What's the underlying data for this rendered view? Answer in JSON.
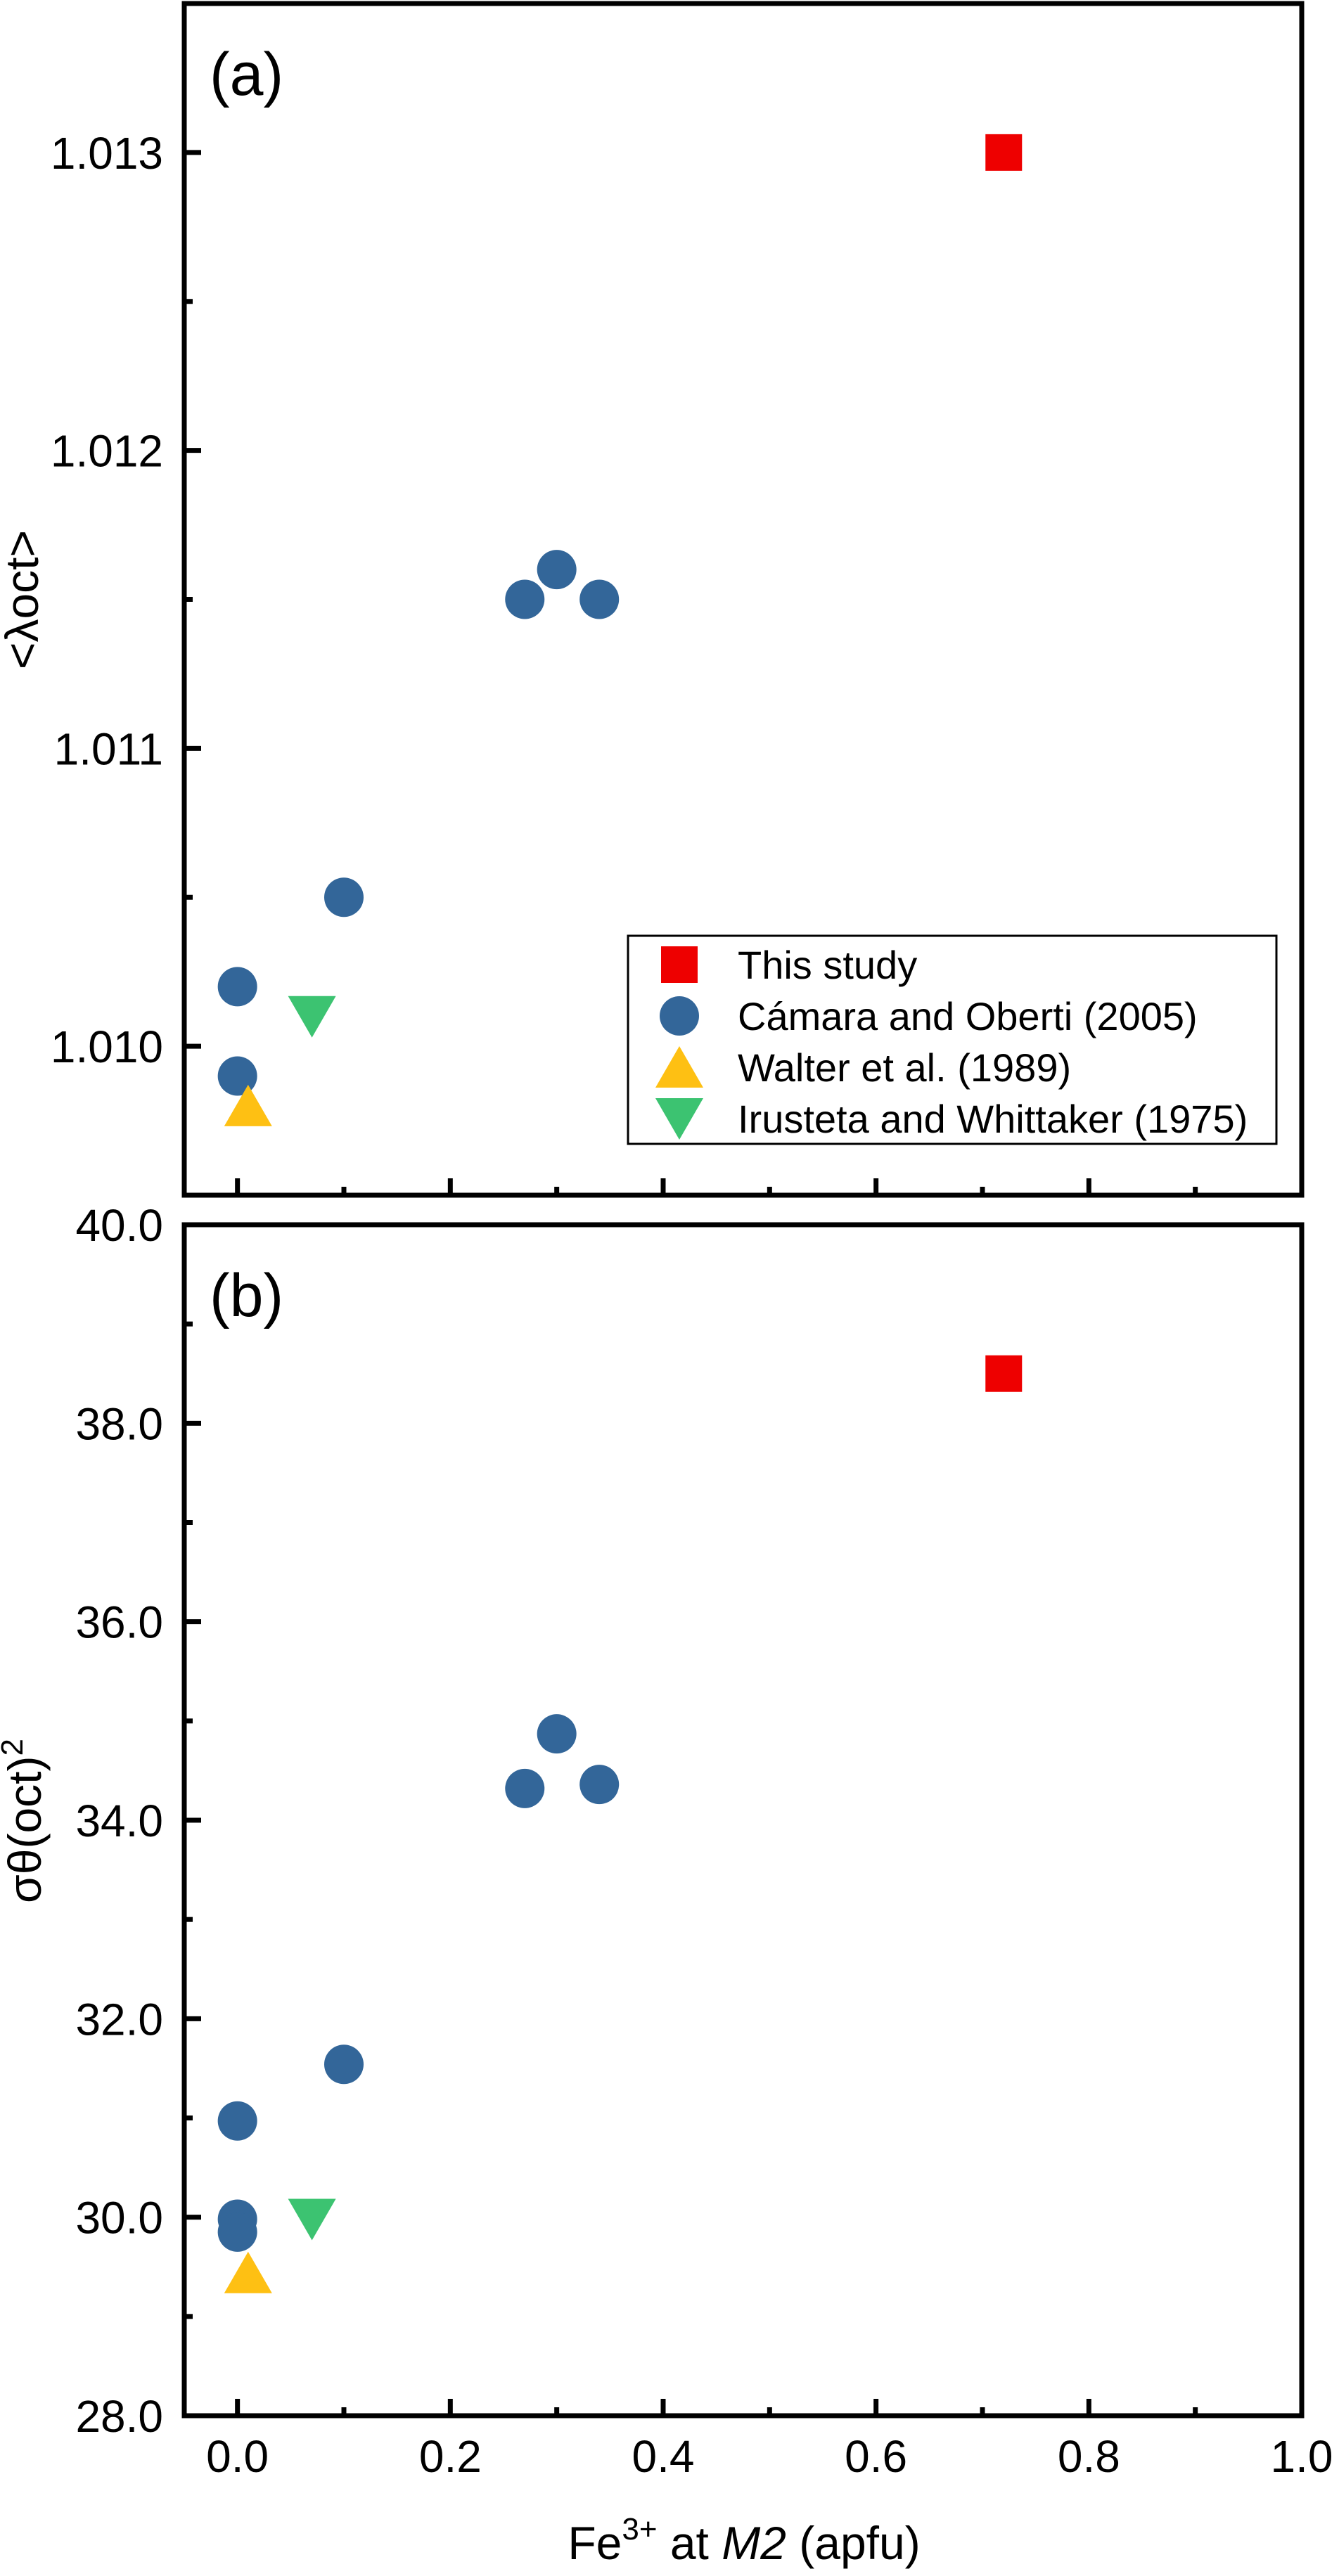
{
  "chart_data": [
    {
      "type": "scatter",
      "panel_label": "(a)",
      "ylabel": "<λoct>",
      "xlabel": "",
      "xlim": [
        -0.05,
        1.0
      ],
      "ylim": [
        1.0095,
        1.0135
      ],
      "yticks": [
        1.01,
        1.011,
        1.012,
        1.013
      ],
      "ytick_labels": [
        "1.010",
        "1.011",
        "1.012",
        "1.013"
      ],
      "yminor": [
        1.0095,
        1.0105,
        1.0115,
        1.0125,
        1.0135
      ],
      "grid": false,
      "legend_position": "bottom-right",
      "series": [
        {
          "name": "This study",
          "marker": "square",
          "color": "#ee0000",
          "points": [
            [
              0.72,
              1.013
            ]
          ]
        },
        {
          "name": "Cámara and Oberti (2005)",
          "marker": "circle",
          "color": "#336699",
          "points": [
            [
              0.0,
              1.0102
            ],
            [
              0.0,
              1.0099
            ],
            [
              0.1,
              1.0105
            ],
            [
              0.27,
              1.0115
            ],
            [
              0.3,
              1.0116
            ],
            [
              0.34,
              1.0115
            ]
          ]
        },
        {
          "name": "Walter et al. (1989)",
          "marker": "triangle-up",
          "color": "#fec013",
          "points": [
            [
              0.01,
              1.0098
            ]
          ]
        },
        {
          "name": "Irusteta and Whittaker (1975)",
          "marker": "triangle-down",
          "color": "#3cc371",
          "points": [
            [
              0.07,
              1.0101
            ]
          ]
        }
      ]
    },
    {
      "type": "scatter",
      "panel_label": "(b)",
      "ylabel": "σθ(oct)",
      "ylabel_sup": "2",
      "xlabel_parts": {
        "base": "Fe",
        "sup": "3+",
        "mid": " at ",
        "italic": "M2",
        "tail": " (apfu)"
      },
      "xlim": [
        -0.05,
        1.0
      ],
      "ylim": [
        28.0,
        40.0
      ],
      "xticks": [
        0.0,
        0.2,
        0.4,
        0.6,
        0.8,
        1.0
      ],
      "xtick_labels": [
        "0.0",
        "0.2",
        "0.4",
        "0.6",
        "0.8",
        "1.0"
      ],
      "xminor": [
        0.1,
        0.3,
        0.5,
        0.7,
        0.9
      ],
      "yticks": [
        28.0,
        30.0,
        32.0,
        34.0,
        36.0,
        38.0,
        40.0
      ],
      "ytick_labels": [
        "28.0",
        "30.0",
        "32.0",
        "34.0",
        "36.0",
        "38.0",
        "40.0"
      ],
      "yminor": [
        29.0,
        31.0,
        33.0,
        35.0,
        37.0,
        39.0
      ],
      "grid": false,
      "series": [
        {
          "name": "This study",
          "marker": "square",
          "color": "#ee0000",
          "points": [
            [
              0.72,
              38.5
            ]
          ]
        },
        {
          "name": "Cámara and Oberti (2005)",
          "marker": "circle",
          "color": "#336699",
          "points": [
            [
              0.0,
              30.97
            ],
            [
              0.0,
              29.98
            ],
            [
              0.0,
              29.85
            ],
            [
              0.1,
              31.54
            ],
            [
              0.27,
              34.32
            ],
            [
              0.3,
              34.87
            ],
            [
              0.34,
              34.36
            ]
          ]
        },
        {
          "name": "Walter et al. (1989)",
          "marker": "triangle-up",
          "color": "#fec013",
          "points": [
            [
              0.01,
              29.44
            ]
          ]
        },
        {
          "name": "Irusteta and Whittaker (1975)",
          "marker": "triangle-down",
          "color": "#3cc371",
          "points": [
            [
              0.07,
              29.98
            ]
          ]
        }
      ]
    }
  ],
  "legend": {
    "items": [
      {
        "label": "This study",
        "marker": "square",
        "color": "#ee0000"
      },
      {
        "label": "Cámara and Oberti (2005)",
        "marker": "circle",
        "color": "#336699"
      },
      {
        "label": "Walter et al. (1989)",
        "marker": "triangle-up",
        "color": "#fec013"
      },
      {
        "label": "Irusteta and Whittaker (1975)",
        "marker": "triangle-down",
        "color": "#3cc371"
      }
    ]
  }
}
